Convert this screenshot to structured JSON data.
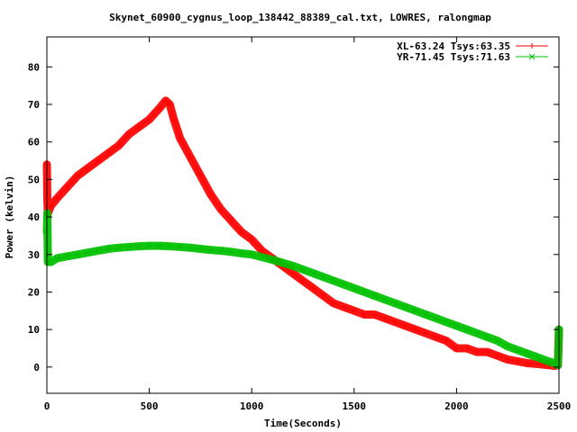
{
  "chart_data": {
    "type": "line",
    "title": "Skynet_60900_cygnus_loop_138442_88389_cal.txt, LOWRES, ralongmap",
    "xlabel": "Time(Seconds)",
    "ylabel": "Power (kelvin)",
    "xlim": [
      0,
      2500
    ],
    "ylim": [
      -7,
      88
    ],
    "x_ticks": [
      0,
      500,
      1000,
      1500,
      2000,
      2500
    ],
    "y_ticks": [
      0,
      10,
      20,
      30,
      40,
      50,
      60,
      70,
      80
    ],
    "x_tick_labels": [
      "0",
      "500",
      "1000",
      "1500",
      "2000",
      "2500"
    ],
    "y_tick_labels": [
      "0",
      "10",
      "20",
      "30",
      "40",
      "50",
      "60",
      "70",
      "80"
    ],
    "grid": false,
    "legend_position": "top-right",
    "series": [
      {
        "name": "XL-63.24 Tsys:63.35",
        "color": "#ff0000",
        "marker": "plus",
        "x": [
          0,
          2,
          5,
          20,
          50,
          100,
          150,
          200,
          250,
          300,
          350,
          400,
          450,
          500,
          550,
          580,
          600,
          620,
          650,
          700,
          750,
          800,
          850,
          900,
          950,
          1000,
          1050,
          1100,
          1150,
          1200,
          1250,
          1300,
          1350,
          1400,
          1450,
          1500,
          1550,
          1600,
          1650,
          1700,
          1750,
          1800,
          1850,
          1900,
          1950,
          2000,
          2050,
          2100,
          2150,
          2200,
          2250,
          2300,
          2350,
          2400,
          2450,
          2480,
          2495,
          2500
        ],
        "y": [
          54,
          45,
          41,
          43,
          45,
          48,
          51,
          53,
          55,
          57,
          59,
          62,
          64,
          66,
          69,
          71,
          70,
          66,
          61,
          56,
          51,
          46,
          42,
          39,
          36,
          34,
          31,
          29,
          27,
          25,
          23,
          21,
          19,
          17,
          16,
          15,
          14,
          14,
          13,
          12,
          11,
          10,
          9,
          8,
          7,
          5,
          5,
          4,
          4,
          3,
          2,
          1.5,
          1,
          0.8,
          0.5,
          0.3,
          0.5,
          10
        ]
      },
      {
        "name": "YR-71.45 Tsys:71.63",
        "color": "#00c000",
        "marker": "cross",
        "x": [
          0,
          2,
          5,
          20,
          50,
          100,
          150,
          200,
          250,
          300,
          350,
          400,
          450,
          500,
          550,
          600,
          650,
          700,
          750,
          800,
          850,
          900,
          950,
          1000,
          1050,
          1100,
          1150,
          1200,
          1250,
          1300,
          1350,
          1400,
          1450,
          1500,
          1550,
          1600,
          1650,
          1700,
          1750,
          1800,
          1850,
          1900,
          1950,
          2000,
          2050,
          2100,
          2150,
          2200,
          2250,
          2300,
          2350,
          2400,
          2450,
          2480,
          2495,
          2500
        ],
        "y": [
          36,
          41,
          28,
          28,
          29,
          29.5,
          30,
          30.5,
          31,
          31.5,
          31.8,
          32,
          32.2,
          32.3,
          32.3,
          32.2,
          32,
          31.8,
          31.5,
          31.2,
          31,
          30.7,
          30.3,
          30,
          29.3,
          28.6,
          27.8,
          27,
          26,
          25,
          24,
          23,
          22,
          21,
          20,
          19,
          18,
          17,
          16,
          15,
          14,
          13,
          12,
          11,
          10,
          9,
          8,
          7,
          5.5,
          4.5,
          3.5,
          2.5,
          1.5,
          1,
          0.5,
          10
        ]
      }
    ]
  }
}
